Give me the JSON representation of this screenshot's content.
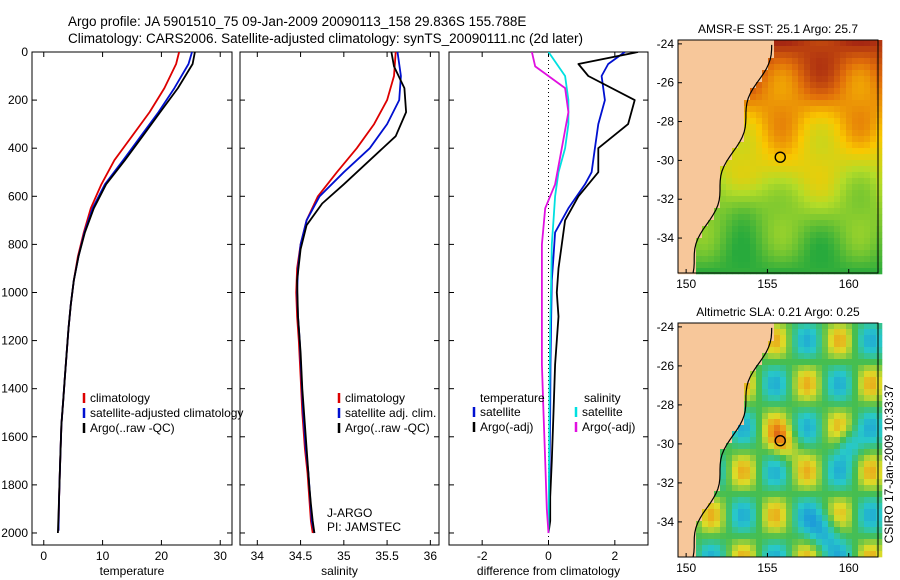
{
  "header": {
    "line1": "Argo profile: JA 5901510_75 09-Jan-2009 20090113_158 29.836S 155.788E",
    "line2": "Climatology: CARS2006. Satellite-adjusted climatology: synTS_20090111.nc (2d later)"
  },
  "side_label": "CSIRO 17-Jan-2009 10:33:37",
  "colors": {
    "climatology": "#dd0000",
    "satellite": "#0010d0",
    "argo": "#000000",
    "sal_satellite": "#00e0e0",
    "sal_argo": "#e010e0",
    "land": "#f7c79a"
  },
  "chart_data": [
    {
      "type": "line",
      "id": "temperature",
      "xlabel": "temperature",
      "xlim": [
        -2,
        32
      ],
      "xticks": [
        0,
        10,
        20,
        30
      ],
      "ylim": [
        2050,
        0
      ],
      "yticks": [
        0,
        200,
        400,
        600,
        800,
        1000,
        1200,
        1400,
        1600,
        1800,
        2000
      ],
      "legend": [
        "climatology",
        "satellite-adjusted climatology",
        "Argo(..raw -QC)"
      ],
      "series": [
        {
          "name": "climatology",
          "color_key": "climatology",
          "x": [
            23.0,
            22.5,
            20.5,
            18.0,
            15.0,
            12.0,
            9.8,
            8.0,
            6.8,
            5.8,
            5.1,
            4.6,
            4.2,
            3.9,
            3.6,
            3.3,
            3.0,
            2.8,
            2.6,
            2.5
          ],
          "y": [
            0,
            50,
            150,
            250,
            350,
            450,
            550,
            650,
            750,
            850,
            950,
            1050,
            1150,
            1250,
            1350,
            1450,
            1550,
            1700,
            1850,
            1990
          ]
        },
        {
          "name": "satellite-adjusted climatology",
          "color_key": "satellite",
          "x": [
            25.2,
            24.6,
            22.2,
            19.5,
            16.5,
            13.5,
            10.4,
            8.3,
            6.9,
            5.9,
            5.1,
            4.6,
            4.2,
            3.9,
            3.6,
            3.3,
            3.0,
            2.8,
            2.6,
            2.5
          ],
          "y": [
            0,
            50,
            150,
            250,
            350,
            450,
            550,
            650,
            750,
            850,
            950,
            1050,
            1150,
            1250,
            1350,
            1450,
            1550,
            1700,
            1850,
            1990
          ]
        },
        {
          "name": "Argo(..raw -QC)",
          "color_key": "argo",
          "x": [
            25.7,
            25.3,
            22.8,
            19.8,
            16.8,
            13.8,
            10.6,
            8.5,
            7.0,
            5.9,
            5.1,
            4.6,
            4.2,
            3.9,
            3.6,
            3.3,
            3.0,
            2.8,
            2.6,
            2.4
          ],
          "y": [
            0,
            50,
            150,
            250,
            350,
            450,
            550,
            650,
            750,
            850,
            950,
            1050,
            1150,
            1250,
            1350,
            1450,
            1550,
            1700,
            1850,
            2000
          ]
        }
      ]
    },
    {
      "type": "line",
      "id": "salinity",
      "xlabel": "salinity",
      "xlim": [
        33.8,
        36.1
      ],
      "xticks": [
        34,
        34.5,
        35,
        35.5,
        36
      ],
      "ylim": [
        2050,
        0
      ],
      "yticks": [
        0,
        200,
        400,
        600,
        800,
        1000,
        1200,
        1400,
        1600,
        1800,
        2000
      ],
      "legend": [
        "climatology",
        "satellite adj. clim.",
        "Argo(..raw -QC)"
      ],
      "annotation": [
        "J-ARGO",
        "PI: JAMSTEC"
      ],
      "series": [
        {
          "name": "climatology",
          "color_key": "climatology",
          "x": [
            35.6,
            35.58,
            35.5,
            35.35,
            35.15,
            34.92,
            34.7,
            34.57,
            34.5,
            34.46,
            34.45,
            34.46,
            34.48,
            34.5,
            34.52,
            34.55,
            34.58,
            34.6,
            34.62,
            34.64
          ],
          "y": [
            0,
            100,
            200,
            300,
            400,
            500,
            600,
            700,
            800,
            900,
            1000,
            1100,
            1200,
            1350,
            1500,
            1650,
            1750,
            1850,
            1950,
            2000
          ]
        },
        {
          "name": "satellite adj. clim.",
          "color_key": "satellite",
          "x": [
            35.62,
            35.66,
            35.64,
            35.5,
            35.3,
            35.0,
            34.72,
            34.57,
            34.5,
            34.47,
            34.46,
            34.47,
            34.49,
            34.51,
            34.53,
            34.56,
            34.59,
            34.61,
            34.63,
            34.66
          ],
          "y": [
            0,
            100,
            200,
            300,
            400,
            500,
            600,
            700,
            800,
            900,
            1000,
            1100,
            1200,
            1350,
            1500,
            1650,
            1750,
            1850,
            1950,
            2000
          ]
        },
        {
          "name": "Argo(..raw -QC)",
          "color_key": "argo",
          "x": [
            35.55,
            35.58,
            35.7,
            35.72,
            35.6,
            35.3,
            35.0,
            34.75,
            34.57,
            34.5,
            34.46,
            34.47,
            34.5,
            34.52,
            34.55,
            34.58,
            34.6,
            34.62,
            34.64,
            34.66
          ],
          "y": [
            0,
            60,
            150,
            250,
            350,
            450,
            550,
            630,
            720,
            820,
            950,
            1100,
            1250,
            1400,
            1550,
            1700,
            1800,
            1880,
            1950,
            2000
          ]
        }
      ]
    },
    {
      "type": "line",
      "id": "difference",
      "xlabel": "difference from climatology",
      "xlim": [
        -3,
        3
      ],
      "xticks": [
        -2,
        0,
        2
      ],
      "ylim": [
        2050,
        0
      ],
      "yticks": [
        0,
        200,
        400,
        600,
        800,
        1000,
        1200,
        1400,
        1600,
        1800,
        2000
      ],
      "legend_left": {
        "title": "temperature",
        "items": [
          "satellite",
          "Argo(-adj)"
        ]
      },
      "legend_right": {
        "title": "salinity",
        "items": [
          "satellite",
          "Argo(-adj)"
        ]
      },
      "series": [
        {
          "name": "temperature satellite",
          "color_key": "satellite",
          "x": [
            2.3,
            1.8,
            1.6,
            1.7,
            1.5,
            1.4,
            1.3,
            1.1,
            0.6,
            0.2,
            0.15,
            0.1,
            0.08,
            0.06,
            0.05,
            0.04,
            0.02,
            0.01,
            0.0
          ],
          "y": [
            0,
            50,
            100,
            200,
            300,
            400,
            500,
            550,
            650,
            750,
            850,
            950,
            1100,
            1300,
            1500,
            1650,
            1800,
            1950,
            2000
          ]
        },
        {
          "name": "temperature Argo(-adj)",
          "color_key": "argo",
          "x": [
            2.7,
            0.9,
            1.2,
            2.6,
            2.4,
            1.5,
            1.5,
            0.9,
            0.5,
            0.4,
            0.3,
            0.25,
            0.3,
            0.2,
            0.15,
            0.1,
            0.05,
            0.05,
            0.0
          ],
          "y": [
            0,
            50,
            100,
            200,
            300,
            400,
            500,
            600,
            700,
            800,
            900,
            1000,
            1100,
            1300,
            1500,
            1700,
            1850,
            1950,
            2000
          ]
        },
        {
          "name": "salinity satellite",
          "color_key": "sal_satellite",
          "x": [
            0.0,
            0.5,
            0.6,
            0.6,
            0.5,
            0.3,
            0.2,
            0.15,
            0.1,
            0.08,
            0.05,
            0.03,
            0.02,
            0.01,
            0.0
          ],
          "y": [
            0,
            100,
            200,
            300,
            400,
            500,
            600,
            700,
            800,
            950,
            1150,
            1400,
            1650,
            1850,
            2000
          ]
        },
        {
          "name": "salinity Argo(-adj)",
          "color_key": "sal_argo",
          "x": [
            -0.5,
            -0.4,
            0.5,
            0.6,
            0.4,
            0.2,
            -0.1,
            -0.2,
            -0.2,
            -0.2,
            -0.2,
            -0.15,
            -0.1,
            -0.05,
            0.0
          ],
          "y": [
            0,
            60,
            150,
            250,
            400,
            550,
            650,
            800,
            950,
            1100,
            1300,
            1500,
            1700,
            1900,
            2000
          ]
        }
      ]
    },
    {
      "type": "heatmap",
      "id": "sst_map",
      "title": "AMSR-E SST: 25.1  Argo: 25.7",
      "xlim": [
        149.5,
        161.8
      ],
      "ylim": [
        -35.8,
        -23.8
      ],
      "xticks": [
        150,
        155,
        160
      ],
      "yticks": [
        -24,
        -26,
        -28,
        -30,
        -32,
        -34
      ],
      "marker": {
        "lon": 155.788,
        "lat": -29.836
      }
    },
    {
      "type": "heatmap",
      "id": "sla_map",
      "title": "Altimetric SLA: 0.21  Argo: 0.25",
      "xlim": [
        149.5,
        161.8
      ],
      "ylim": [
        -35.8,
        -23.8
      ],
      "xticks": [
        150,
        155,
        160
      ],
      "yticks": [
        -24,
        -26,
        -28,
        -30,
        -32,
        -34
      ],
      "marker": {
        "lon": 155.788,
        "lat": -29.836
      }
    }
  ]
}
